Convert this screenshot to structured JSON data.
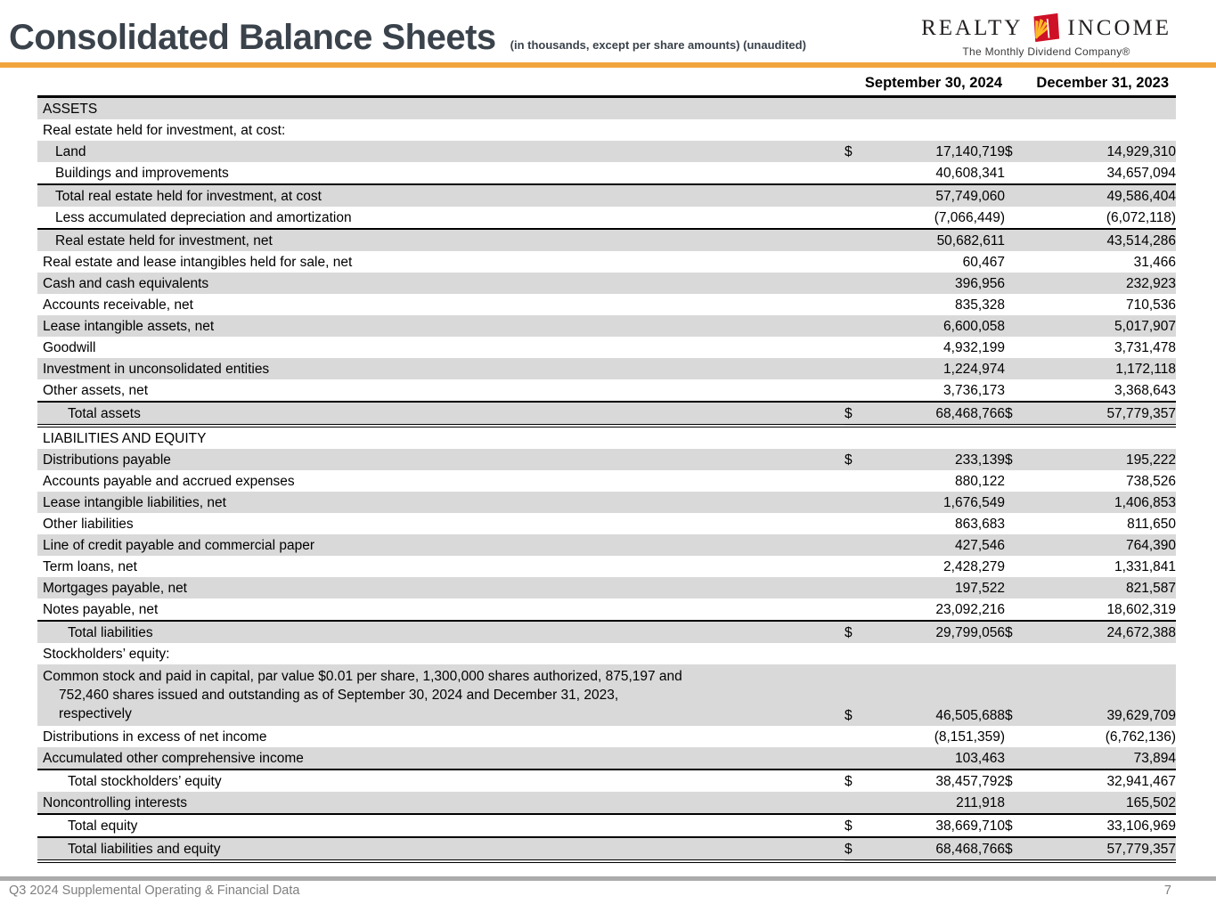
{
  "header": {
    "title": "Consolidated Balance Sheets",
    "subtitle": "(in thousands, except per share amounts) (unaudited)",
    "logo": {
      "word_left": "REALTY",
      "word_right": "INCOME",
      "tagline": "The Monthly Dividend Company®",
      "icon": "realty-income-door-sunburst-icon"
    }
  },
  "colors": {
    "accent_orange": "#F2A43C",
    "row_shade_gray": "#D9D9D9",
    "title_dark": "#3A424B",
    "logo_red": "#CE1126",
    "logo_yellow": "#FDB927",
    "footer_gray": "#7F7F7F"
  },
  "table": {
    "col1_header": "September 30, 2024",
    "col2_header": "December 31, 2023",
    "rows": [
      {
        "label": "ASSETS",
        "indent": 0,
        "d1": "",
        "v1": "",
        "d2": "",
        "v2": ""
      },
      {
        "label": "Real estate held for investment, at cost:",
        "indent": 0,
        "d1": "",
        "v1": "",
        "d2": "",
        "v2": ""
      },
      {
        "label": "Land",
        "indent": 1,
        "d1": "$",
        "v1": "17,140,719",
        "d2": "$",
        "v2": "14,929,310"
      },
      {
        "label": "Buildings and improvements",
        "indent": 1,
        "d1": "",
        "v1": "40,608,341",
        "d2": "",
        "v2": "34,657,094"
      },
      {
        "label": "Total real estate held for investment, at cost",
        "indent": 1,
        "d1": "",
        "v1": "57,749,060",
        "d2": "",
        "v2": "49,586,404",
        "rule_top": true
      },
      {
        "label": "Less accumulated depreciation and amortization",
        "indent": 1,
        "d1": "",
        "v1": "(7,066,449)",
        "d2": "",
        "v2": "(6,072,118)"
      },
      {
        "label": "Real estate held for investment, net",
        "indent": 1,
        "d1": "",
        "v1": "50,682,611",
        "d2": "",
        "v2": "43,514,286",
        "rule_top": true
      },
      {
        "label": "Real estate and lease intangibles held for sale, net",
        "indent": 0,
        "d1": "",
        "v1": "60,467",
        "d2": "",
        "v2": "31,466"
      },
      {
        "label": "Cash and cash equivalents",
        "indent": 0,
        "d1": "",
        "v1": "396,956",
        "d2": "",
        "v2": "232,923"
      },
      {
        "label": "Accounts receivable, net",
        "indent": 0,
        "d1": "",
        "v1": "835,328",
        "d2": "",
        "v2": "710,536"
      },
      {
        "label": "Lease intangible assets, net",
        "indent": 0,
        "d1": "",
        "v1": "6,600,058",
        "d2": "",
        "v2": "5,017,907"
      },
      {
        "label": "Goodwill",
        "indent": 0,
        "d1": "",
        "v1": "4,932,199",
        "d2": "",
        "v2": "3,731,478"
      },
      {
        "label": "Investment in unconsolidated entities",
        "indent": 0,
        "d1": "",
        "v1": "1,224,974",
        "d2": "",
        "v2": "1,172,118"
      },
      {
        "label": "Other assets, net",
        "indent": 0,
        "d1": "",
        "v1": "3,736,173",
        "d2": "",
        "v2": "3,368,643"
      },
      {
        "label": "Total assets",
        "indent": 2,
        "d1": "$",
        "v1": "68,468,766",
        "d2": "$",
        "v2": "57,779,357",
        "rule_top": true,
        "rule_bottom": "double"
      },
      {
        "label": "LIABILITIES AND EQUITY",
        "indent": 0,
        "d1": "",
        "v1": "",
        "d2": "",
        "v2": ""
      },
      {
        "label": "Distributions payable",
        "indent": 0,
        "d1": "$",
        "v1": "233,139",
        "d2": "$",
        "v2": "195,222"
      },
      {
        "label": "Accounts payable and accrued expenses",
        "indent": 0,
        "d1": "",
        "v1": "880,122",
        "d2": "",
        "v2": "738,526"
      },
      {
        "label": "Lease intangible liabilities, net",
        "indent": 0,
        "d1": "",
        "v1": "1,676,549",
        "d2": "",
        "v2": "1,406,853"
      },
      {
        "label": "Other liabilities",
        "indent": 0,
        "d1": "",
        "v1": "863,683",
        "d2": "",
        "v2": "811,650"
      },
      {
        "label": "Line of credit payable and commercial paper",
        "indent": 0,
        "d1": "",
        "v1": "427,546",
        "d2": "",
        "v2": "764,390"
      },
      {
        "label": "Term loans, net",
        "indent": 0,
        "d1": "",
        "v1": "2,428,279",
        "d2": "",
        "v2": "1,331,841"
      },
      {
        "label": "Mortgages payable, net",
        "indent": 0,
        "d1": "",
        "v1": "197,522",
        "d2": "",
        "v2": "821,587"
      },
      {
        "label": "Notes payable, net",
        "indent": 0,
        "d1": "",
        "v1": "23,092,216",
        "d2": "",
        "v2": "18,602,319"
      },
      {
        "label": "Total liabilities",
        "indent": 2,
        "d1": "$",
        "v1": "29,799,056",
        "d2": "$",
        "v2": "24,672,388",
        "rule_top": true
      },
      {
        "label": "Stockholders’ equity:",
        "indent": 0,
        "d1": "",
        "v1": "",
        "d2": "",
        "v2": ""
      },
      {
        "label": "Common stock and paid in capital, par value $0.01 per share, 1,300,000 shares authorized, 875,197 and\n752,460 shares issued and outstanding as of September 30, 2024 and December 31, 2023,\nrespectively",
        "indent": 0,
        "wrap": true,
        "d1": "$",
        "v1": "46,505,688",
        "d2": "$",
        "v2": "39,629,709"
      },
      {
        "label": "Distributions in excess of net income",
        "indent": 0,
        "d1": "",
        "v1": "(8,151,359)",
        "d2": "",
        "v2": "(6,762,136)"
      },
      {
        "label": "Accumulated other comprehensive income",
        "indent": 0,
        "d1": "",
        "v1": "103,463",
        "d2": "",
        "v2": "73,894"
      },
      {
        "label": "Total stockholders’ equity",
        "indent": 2,
        "d1": "$",
        "v1": "38,457,792",
        "d2": "$",
        "v2": "32,941,467",
        "rule_top": true
      },
      {
        "label": "Noncontrolling interests",
        "indent": 0,
        "d1": "",
        "v1": "211,918",
        "d2": "",
        "v2": "165,502"
      },
      {
        "label": "Total equity",
        "indent": 2,
        "d1": "$",
        "v1": "38,669,710",
        "d2": "$",
        "v2": "33,106,969",
        "rule_top": true
      },
      {
        "label": "Total liabilities and equity",
        "indent": 2,
        "d1": "$",
        "v1": "68,468,766",
        "d2": "$",
        "v2": "57,779,357",
        "rule_top": true,
        "rule_bottom": "double"
      }
    ]
  },
  "footer": {
    "left_text": "Q3 2024 Supplemental Operating & Financial Data",
    "page_number": "7"
  }
}
